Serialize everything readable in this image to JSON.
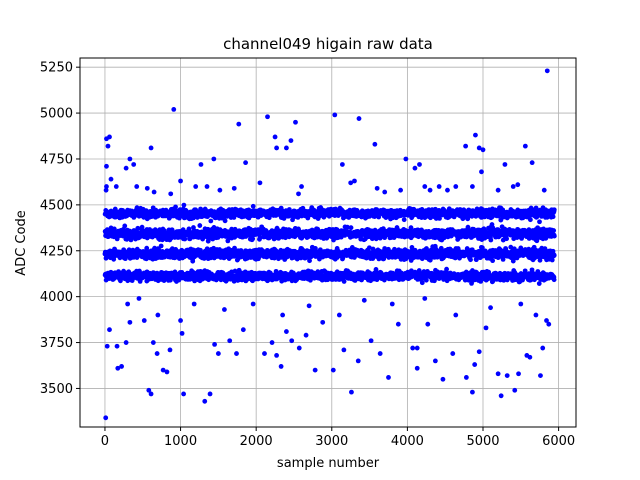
{
  "chart_data": {
    "type": "scatter",
    "title": "channel049 higain raw data",
    "xlabel": "sample number",
    "ylabel": "ADC Code",
    "xlim": [
      -330,
      6230
    ],
    "ylim": [
      3290,
      5300
    ],
    "xticks": [
      0,
      1000,
      2000,
      3000,
      4000,
      5000,
      6000
    ],
    "yticks": [
      3500,
      3750,
      4000,
      4250,
      4500,
      4750,
      5000,
      5250
    ],
    "xtick_labels": [
      "0",
      "1000",
      "2000",
      "3000",
      "4000",
      "5000",
      "6000"
    ],
    "ytick_labels": [
      "3500",
      "3750",
      "4000",
      "4250",
      "4500",
      "4750",
      "5000",
      "5250"
    ],
    "grid": true,
    "marker_color": "#0000ff",
    "series": [
      {
        "sample_range": [
          0,
          5940
        ],
        "dense_bands": [
          {
            "center": 4453,
            "spread": 12
          },
          {
            "center": 4343,
            "spread": 13
          },
          {
            "center": 4233,
            "spread": 13
          },
          {
            "center": 4112,
            "spread": 12
          }
        ],
        "points": [
          [
            20,
            4860
          ],
          [
            60,
            4870
          ],
          [
            40,
            4820
          ],
          [
            20,
            4710
          ],
          [
            20,
            4600
          ],
          [
            15,
            4580
          ],
          [
            80,
            4640
          ],
          [
            150,
            4600
          ],
          [
            280,
            4700
          ],
          [
            330,
            4750
          ],
          [
            380,
            4720
          ],
          [
            420,
            4600
          ],
          [
            560,
            4590
          ],
          [
            610,
            4810
          ],
          [
            650,
            4570
          ],
          [
            910,
            5020
          ],
          [
            870,
            4560
          ],
          [
            1000,
            4630
          ],
          [
            1200,
            4600
          ],
          [
            1270,
            4720
          ],
          [
            1350,
            4600
          ],
          [
            1440,
            4750
          ],
          [
            1520,
            4580
          ],
          [
            1710,
            4590
          ],
          [
            1770,
            4940
          ],
          [
            1860,
            4730
          ],
          [
            2050,
            4620
          ],
          [
            2150,
            4980
          ],
          [
            2250,
            4870
          ],
          [
            2270,
            4810
          ],
          [
            2400,
            4810
          ],
          [
            2460,
            4850
          ],
          [
            2520,
            4950
          ],
          [
            2560,
            4560
          ],
          [
            2600,
            4600
          ],
          [
            3040,
            4990
          ],
          [
            3140,
            4720
          ],
          [
            3250,
            4620
          ],
          [
            3300,
            4630
          ],
          [
            3360,
            4970
          ],
          [
            3570,
            4830
          ],
          [
            3600,
            4590
          ],
          [
            3700,
            4570
          ],
          [
            3910,
            4580
          ],
          [
            3980,
            4750
          ],
          [
            4100,
            4700
          ],
          [
            4160,
            4720
          ],
          [
            4230,
            4600
          ],
          [
            4300,
            4580
          ],
          [
            4420,
            4600
          ],
          [
            4530,
            4580
          ],
          [
            4640,
            4600
          ],
          [
            4770,
            4820
          ],
          [
            4860,
            4600
          ],
          [
            4900,
            4880
          ],
          [
            4950,
            4810
          ],
          [
            5000,
            4800
          ],
          [
            4980,
            4680
          ],
          [
            5200,
            4580
          ],
          [
            5290,
            4720
          ],
          [
            5400,
            4600
          ],
          [
            5460,
            4610
          ],
          [
            5560,
            4820
          ],
          [
            5650,
            4730
          ],
          [
            5810,
            4580
          ],
          [
            5850,
            5230
          ],
          [
            10,
            3340
          ],
          [
            30,
            3730
          ],
          [
            60,
            3820
          ],
          [
            160,
            3730
          ],
          [
            170,
            3610
          ],
          [
            220,
            3620
          ],
          [
            280,
            3750
          ],
          [
            330,
            3860
          ],
          [
            520,
            3870
          ],
          [
            580,
            3490
          ],
          [
            610,
            3470
          ],
          [
            640,
            3750
          ],
          [
            690,
            3690
          ],
          [
            770,
            3600
          ],
          [
            820,
            3590
          ],
          [
            860,
            3710
          ],
          [
            1000,
            3870
          ],
          [
            1020,
            3800
          ],
          [
            1040,
            3470
          ],
          [
            1320,
            3430
          ],
          [
            1390,
            3470
          ],
          [
            1450,
            3740
          ],
          [
            1500,
            3690
          ],
          [
            1650,
            3760
          ],
          [
            1740,
            3690
          ],
          [
            1830,
            3820
          ],
          [
            2110,
            3690
          ],
          [
            2210,
            3750
          ],
          [
            2270,
            3680
          ],
          [
            2330,
            3620
          ],
          [
            2400,
            3810
          ],
          [
            2470,
            3760
          ],
          [
            2570,
            3720
          ],
          [
            2660,
            3790
          ],
          [
            2780,
            3600
          ],
          [
            2880,
            3860
          ],
          [
            3020,
            3600
          ],
          [
            3160,
            3710
          ],
          [
            3260,
            3480
          ],
          [
            3350,
            3650
          ],
          [
            3520,
            3760
          ],
          [
            3640,
            3690
          ],
          [
            3750,
            3560
          ],
          [
            3880,
            3850
          ],
          [
            4070,
            3720
          ],
          [
            4130,
            3720
          ],
          [
            4130,
            3610
          ],
          [
            4270,
            3850
          ],
          [
            4370,
            3650
          ],
          [
            4470,
            3550
          ],
          [
            4600,
            3690
          ],
          [
            4780,
            3560
          ],
          [
            4860,
            3480
          ],
          [
            4890,
            3630
          ],
          [
            4950,
            3700
          ],
          [
            5040,
            3830
          ],
          [
            5200,
            3580
          ],
          [
            5240,
            3460
          ],
          [
            5320,
            3570
          ],
          [
            5420,
            3490
          ],
          [
            5470,
            3580
          ],
          [
            5580,
            3680
          ],
          [
            5620,
            3670
          ],
          [
            5760,
            3570
          ],
          [
            5790,
            3720
          ],
          [
            5840,
            3870
          ],
          [
            5870,
            3850
          ],
          [
            300,
            3960
          ],
          [
            450,
            3990
          ],
          [
            700,
            3900
          ],
          [
            1180,
            3960
          ],
          [
            1580,
            3930
          ],
          [
            1960,
            3960
          ],
          [
            2350,
            3900
          ],
          [
            2700,
            3950
          ],
          [
            3100,
            3900
          ],
          [
            3430,
            3980
          ],
          [
            3800,
            3960
          ],
          [
            4230,
            3990
          ],
          [
            4640,
            3900
          ],
          [
            5100,
            3940
          ],
          [
            5500,
            3960
          ],
          [
            5700,
            3900
          ]
        ]
      }
    ]
  }
}
